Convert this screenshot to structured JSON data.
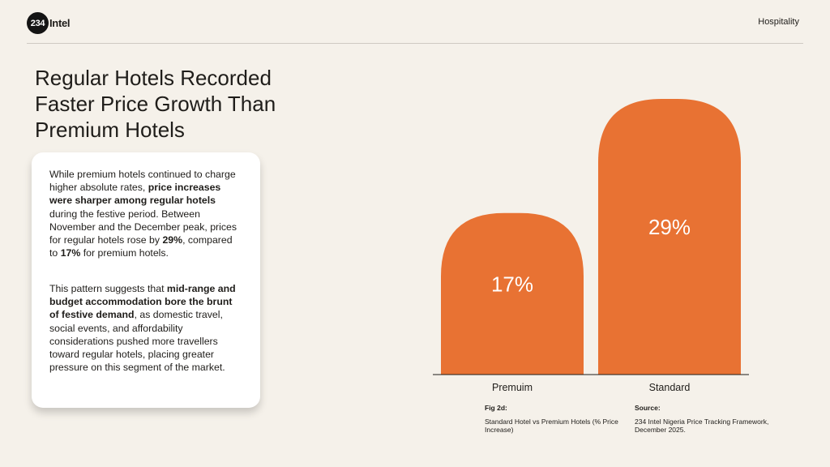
{
  "header": {
    "logo_number": "234",
    "logo_word": "Intel",
    "section": "Hospitality"
  },
  "title": "Regular Hotels Recorded Faster Price Growth Than Premium Hotels",
  "card": {
    "paragraph1": [
      {
        "text": "While premium hotels continued to charge higher absolute rates, ",
        "bold": false
      },
      {
        "text": "price increases were sharper among regular hotels",
        "bold": true
      },
      {
        "text": " during the festive period. Between November and the December peak, prices for regular hotels rose by ",
        "bold": false
      },
      {
        "text": "29%",
        "bold": true
      },
      {
        "text": ", compared to ",
        "bold": false
      },
      {
        "text": "17%",
        "bold": true
      },
      {
        "text": " for premium hotels.",
        "bold": false
      }
    ],
    "paragraph2": [
      {
        "text": "This pattern suggests that ",
        "bold": false
      },
      {
        "text": "mid-range and budget accommodation bore the brunt of festive demand",
        "bold": true
      },
      {
        "text": ", as domestic travel, social events, and affordability considerations pushed more travellers toward regular hotels, placing greater pressure on this segment of the market.",
        "bold": false
      }
    ]
  },
  "chart_data": {
    "type": "bar",
    "categories": [
      "Premuim",
      "Standard"
    ],
    "values": [
      17,
      29
    ],
    "data_labels": [
      "17%",
      "29%"
    ],
    "unit": "%",
    "ylim": [
      0,
      29
    ],
    "grid": false,
    "legend": "none",
    "bar_color": "#e87233"
  },
  "figure": {
    "fig_label": "Fig 2d:",
    "fig_caption": "Standard Hotel vs Premium Hotels (% Price Increase)",
    "source_label": "Source:",
    "source_text": "234 Intel Nigeria Price Tracking Framework, December 2025."
  }
}
